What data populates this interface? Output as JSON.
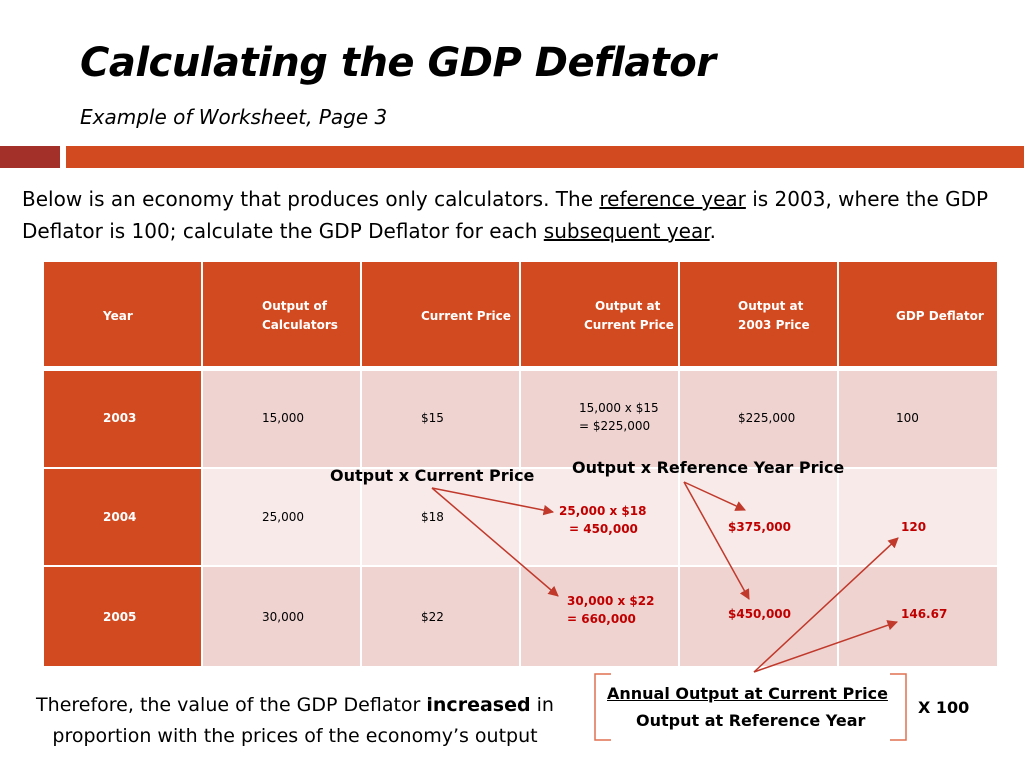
{
  "slide": {
    "title": "Calculating the GDP Deflator",
    "subtitle": "Example of  Worksheet, Page 3",
    "accent_dark": "#A4302A",
    "accent": "#D24A1F"
  },
  "intro": {
    "part1": "Below is an economy that produces only calculators. The ",
    "link1": "reference year",
    "part2": " is 2003, where the GDP Deflator is 100; calculate the GDP Deflator for each ",
    "link2": "subsequent year",
    "part3": "."
  },
  "table": {
    "headers": {
      "year": "Year",
      "output_l1": "Output of",
      "output_l2": "Calculators",
      "price": "Current Price",
      "out_cur_l1": "Output at",
      "out_cur_l2": "Current Price",
      "out_2003_l1": "Output at",
      "out_2003_l2": "2003 Price",
      "deflator": "GDP Deflator"
    },
    "rows": [
      {
        "year": "2003",
        "output": "15,000",
        "price": "$15",
        "calc_l1": "15,000 x $15",
        "calc_l2": "= $225,000",
        "ref_output": "$225,000",
        "deflator": "100"
      },
      {
        "year": "2004",
        "output": "25,000",
        "price": "$18",
        "calc_l1": "25,000 x $18",
        "calc_l2": "= 450,000",
        "ref_output": "$375,000",
        "deflator": "120"
      },
      {
        "year": "2005",
        "output": "30,000",
        "price": "$22",
        "calc_l1": "30,000 x $22",
        "calc_l2": "= 660,000",
        "ref_output": "$450,000",
        "deflator": "146.67"
      }
    ]
  },
  "annotations": {
    "current": "Output x Current Price",
    "reference": "Output x Reference Year Price"
  },
  "conclusion": {
    "part1": "Therefore, the value of the GDP Deflator ",
    "bold": "increased",
    "part2": " in proportion with the prices of the economy’s output"
  },
  "formula": {
    "numerator": "Annual Output at Current Price",
    "denominator": "Output at Reference Year",
    "multiplier": "X 100"
  }
}
